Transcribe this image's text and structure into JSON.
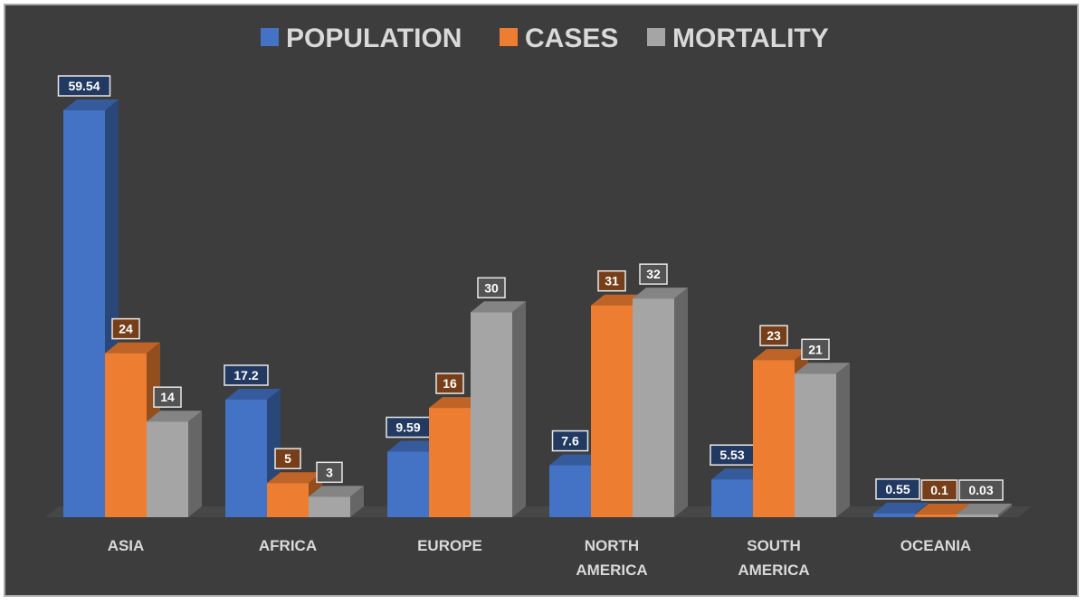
{
  "chart_data": {
    "type": "bar",
    "categories": [
      [
        "ASIA"
      ],
      [
        "AFRICA"
      ],
      [
        "EUROPE"
      ],
      [
        "NORTH",
        "AMERICA"
      ],
      [
        "SOUTH",
        "AMERICA"
      ],
      [
        "OCEANIA"
      ]
    ],
    "series": [
      {
        "name": "POPULATION",
        "color": "#4472c4",
        "values": [
          59.54,
          17.2,
          9.59,
          7.6,
          5.53,
          0.55
        ],
        "labels": [
          "59.54",
          "17.2",
          "9.59",
          "7.6",
          "5.53",
          "0.55"
        ]
      },
      {
        "name": "CASES",
        "color": "#ed7d31",
        "values": [
          24,
          5,
          16,
          31,
          23,
          0.1
        ],
        "labels": [
          "24",
          "5",
          "16",
          "31",
          "23",
          "0.1"
        ]
      },
      {
        "name": "MORTALITY",
        "color": "#a5a5a5",
        "values": [
          14,
          3,
          30,
          32,
          21,
          0.03
        ],
        "labels": [
          "14",
          "3",
          "30",
          "32",
          "21",
          "0.03"
        ]
      }
    ],
    "legend_position": "top-center",
    "grid": false,
    "ylim": [
      0,
      60
    ],
    "background": "#3d3d3d"
  }
}
